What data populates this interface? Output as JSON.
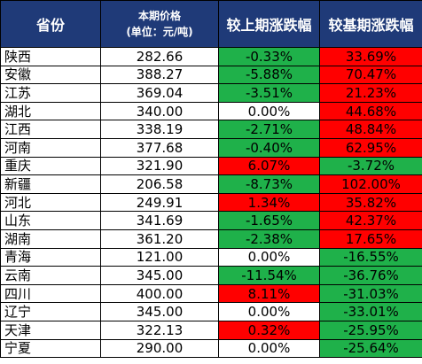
{
  "header": {
    "province": "省份",
    "price_line1": "本期价格",
    "price_line2": "(单位：元/吨)",
    "change_prev": "较上期涨跌幅",
    "change_base": "较基期涨跌幅"
  },
  "colors": {
    "header_bg": "#1f3a78",
    "increase": "#ff0000",
    "decrease": "#1fb14a",
    "no_change": "#ffffff"
  },
  "rows": [
    {
      "province": "陕西",
      "price": "282.66",
      "prev": "-0.33%",
      "prev_color": "green",
      "base": "33.69%",
      "base_color": "red"
    },
    {
      "province": "安徽",
      "price": "388.27",
      "prev": "-5.88%",
      "prev_color": "green",
      "base": "70.47%",
      "base_color": "red"
    },
    {
      "province": "江苏",
      "price": "369.04",
      "prev": "-3.51%",
      "prev_color": "green",
      "base": "21.23%",
      "base_color": "red"
    },
    {
      "province": "湖北",
      "price": "340.00",
      "prev": "0.00%",
      "prev_color": "white",
      "base": "44.68%",
      "base_color": "red"
    },
    {
      "province": "江西",
      "price": "338.19",
      "prev": "-2.71%",
      "prev_color": "green",
      "base": "48.84%",
      "base_color": "red"
    },
    {
      "province": "河南",
      "price": "377.68",
      "prev": "-0.40%",
      "prev_color": "green",
      "base": "62.95%",
      "base_color": "red"
    },
    {
      "province": "重庆",
      "price": "321.90",
      "prev": "6.07%",
      "prev_color": "red",
      "base": "-3.72%",
      "base_color": "green"
    },
    {
      "province": "新疆",
      "price": "206.58",
      "prev": "-8.73%",
      "prev_color": "green",
      "base": "102.00%",
      "base_color": "red"
    },
    {
      "province": "河北",
      "price": "249.91",
      "prev": "1.34%",
      "prev_color": "red",
      "base": "35.82%",
      "base_color": "red"
    },
    {
      "province": "山东",
      "price": "341.69",
      "prev": "-1.65%",
      "prev_color": "green",
      "base": "42.37%",
      "base_color": "red"
    },
    {
      "province": "湖南",
      "price": "361.20",
      "prev": "-2.38%",
      "prev_color": "green",
      "base": "17.65%",
      "base_color": "red"
    },
    {
      "province": "青海",
      "price": "121.00",
      "prev": "0.00%",
      "prev_color": "white",
      "base": "-16.55%",
      "base_color": "green"
    },
    {
      "province": "云南",
      "price": "345.00",
      "prev": "-11.54%",
      "prev_color": "green",
      "base": "-36.76%",
      "base_color": "green"
    },
    {
      "province": "四川",
      "price": "400.00",
      "prev": "8.11%",
      "prev_color": "red",
      "base": "-31.03%",
      "base_color": "green"
    },
    {
      "province": "辽宁",
      "price": "345.00",
      "prev": "0.00%",
      "prev_color": "white",
      "base": "-33.01%",
      "base_color": "green"
    },
    {
      "province": "天津",
      "price": "322.13",
      "prev": "0.32%",
      "prev_color": "red",
      "base": "-25.95%",
      "base_color": "green"
    },
    {
      "province": "宁夏",
      "price": "290.00",
      "prev": "0.00%",
      "prev_color": "white",
      "base": "-25.64%",
      "base_color": "green"
    }
  ]
}
